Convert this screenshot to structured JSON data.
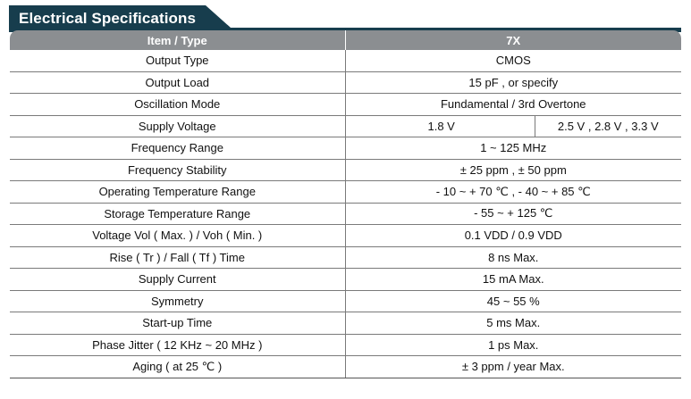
{
  "banner": {
    "title": "Electrical Specifications"
  },
  "colors": {
    "banner": "#173d4d",
    "header": "#8b8e91"
  },
  "table": {
    "headers": [
      "Item / Type",
      "7X"
    ],
    "rows": [
      {
        "item": "Output Type",
        "value": "CMOS"
      },
      {
        "item": "Output Load",
        "value": "15 pF , or specify"
      },
      {
        "item": "Oscillation Mode",
        "value": "Fundamental / 3rd Overtone"
      },
      {
        "item": "Supply Voltage",
        "values": [
          "1.8 V",
          "2.5 V , 2.8 V , 3.3 V"
        ]
      },
      {
        "item": "Frequency Range",
        "value": "1 ~ 125 MHz"
      },
      {
        "item": "Frequency Stability",
        "value": "± 25 ppm , ± 50 ppm"
      },
      {
        "item": "Operating Temperature Range",
        "value": "- 10 ~ + 70 ℃ , - 40 ~ + 85 ℃"
      },
      {
        "item": "Storage Temperature Range",
        "value": "- 55 ~ + 125 ℃"
      },
      {
        "item": "Voltage Vol ( Max. ) / Voh ( Min. )",
        "value": "0.1 VDD / 0.9 VDD"
      },
      {
        "item": "Rise ( Tr ) / Fall ( Tf ) Time",
        "value": "8 ns Max."
      },
      {
        "item": "Supply Current",
        "value": "15 mA Max."
      },
      {
        "item": "Symmetry",
        "value": "45 ~ 55 %"
      },
      {
        "item": "Start-up Time",
        "value": "5 ms Max."
      },
      {
        "item": "Phase Jitter ( 12 KHz ~ 20 MHz )",
        "value": "1 ps Max."
      },
      {
        "item": "Aging ( at 25 ℃ )",
        "value": "± 3 ppm / year Max."
      }
    ]
  }
}
